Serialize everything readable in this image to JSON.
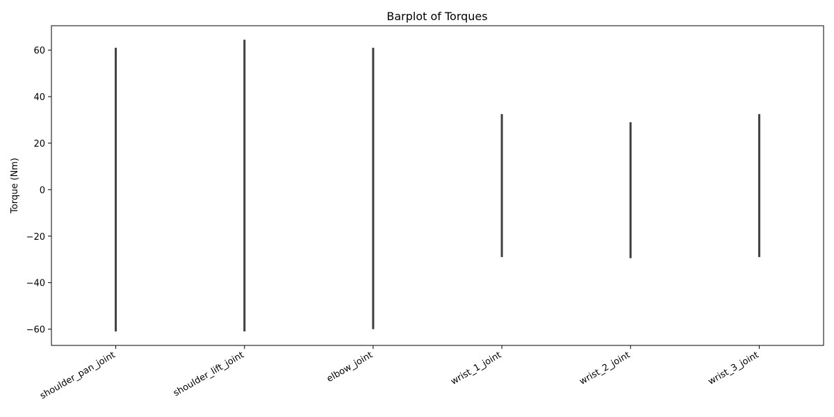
{
  "chart_data": {
    "type": "bar",
    "title": "Barplot of Torques",
    "xlabel": "",
    "ylabel": "Torque (Nm)",
    "categories": [
      "shoulder_pan_joint",
      "shoulder_lift_joint",
      "elbow_joint",
      "wrist_1_joint",
      "wrist_2_joint",
      "wrist_3_joint"
    ],
    "values": [
      0,
      0,
      0,
      0,
      0,
      0
    ],
    "error_low": [
      -61,
      -61,
      -60,
      -29,
      -29.5,
      -29
    ],
    "error_high": [
      61,
      64.5,
      61,
      32.5,
      29,
      32.5
    ],
    "ylim": [
      -67,
      70.5
    ],
    "yticks": [
      -60,
      -40,
      -20,
      0,
      20,
      40,
      60
    ],
    "ytick_labels": [
      "−60",
      "−40",
      "−20",
      "0",
      "20",
      "40",
      "60"
    ],
    "errorbar_color": "#3f3f3f",
    "grid": false,
    "legend": "none"
  }
}
